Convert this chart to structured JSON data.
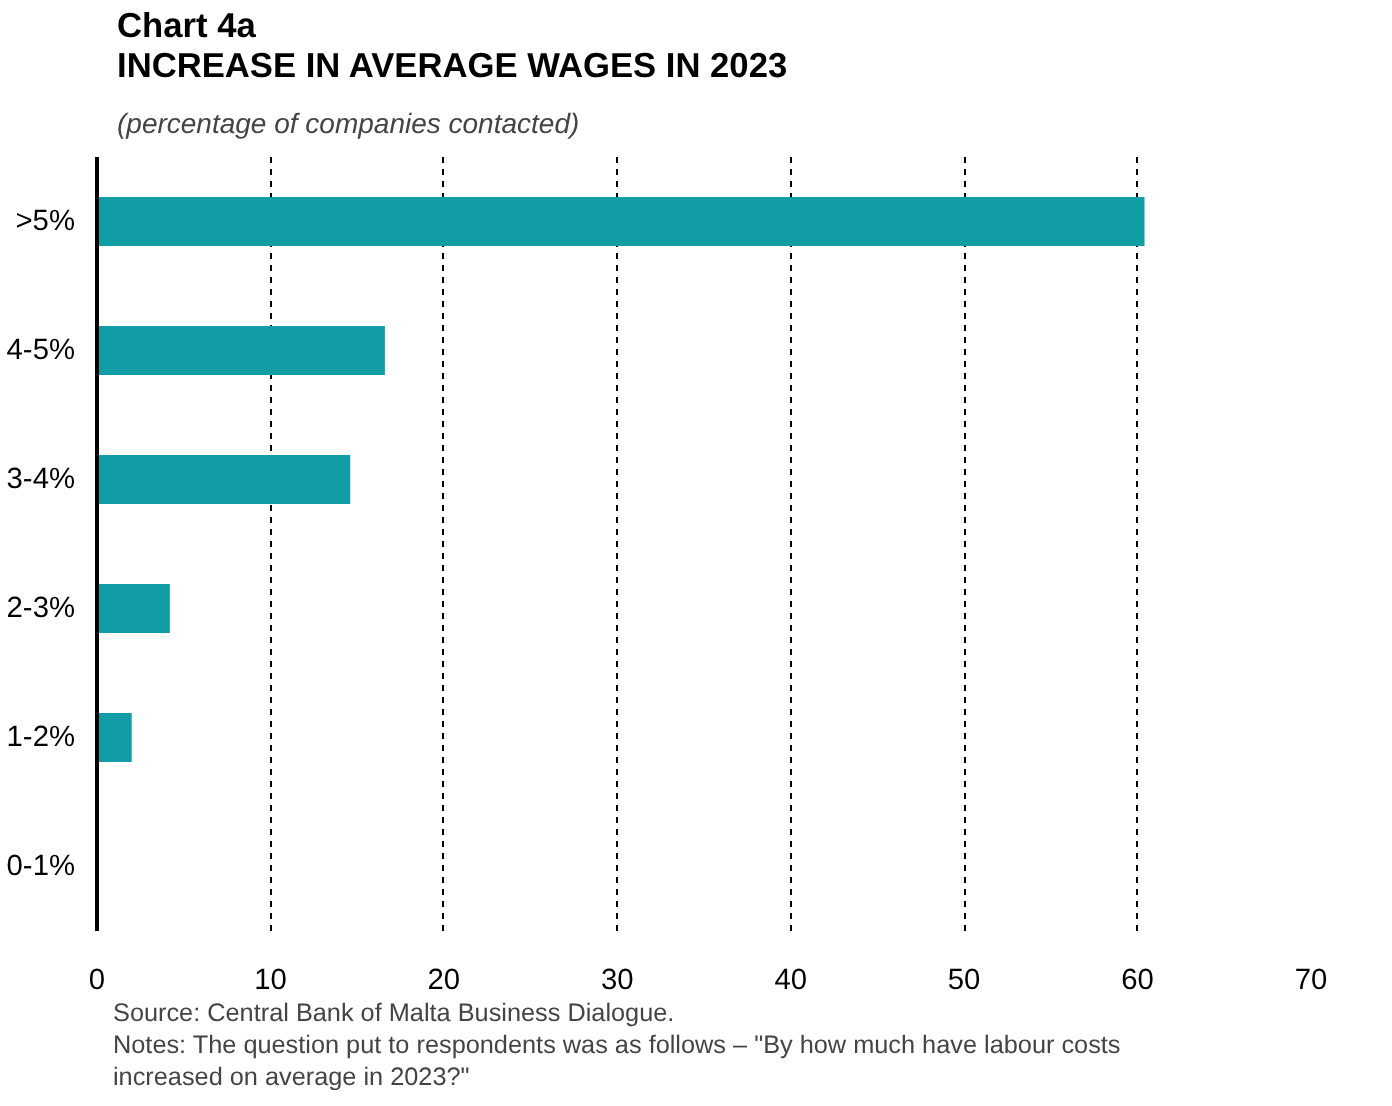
{
  "chart_data": {
    "type": "bar",
    "orientation": "horizontal",
    "title": "Chart 4a\nINCREASE IN AVERAGE WAGES IN 2023",
    "subtitle": "(percentage of companies contacted)",
    "categories": [
      ">5%",
      "4-5%",
      "3-4%",
      "2-3%",
      "1-2%",
      "0-1%"
    ],
    "values": [
      60.4,
      16.6,
      14.6,
      4.2,
      2.0,
      0
    ],
    "color": "#109da4",
    "xlim": [
      0,
      70
    ],
    "xticks": [
      0,
      10,
      20,
      30,
      40,
      50,
      60,
      70
    ],
    "grid": "x",
    "annotations": [
      "Source: Central Bank of Malta Business Dialogue.",
      "Notes: The question put to respondents was as follows – \"By how much have labour costs increased on average in 2023?\""
    ]
  }
}
